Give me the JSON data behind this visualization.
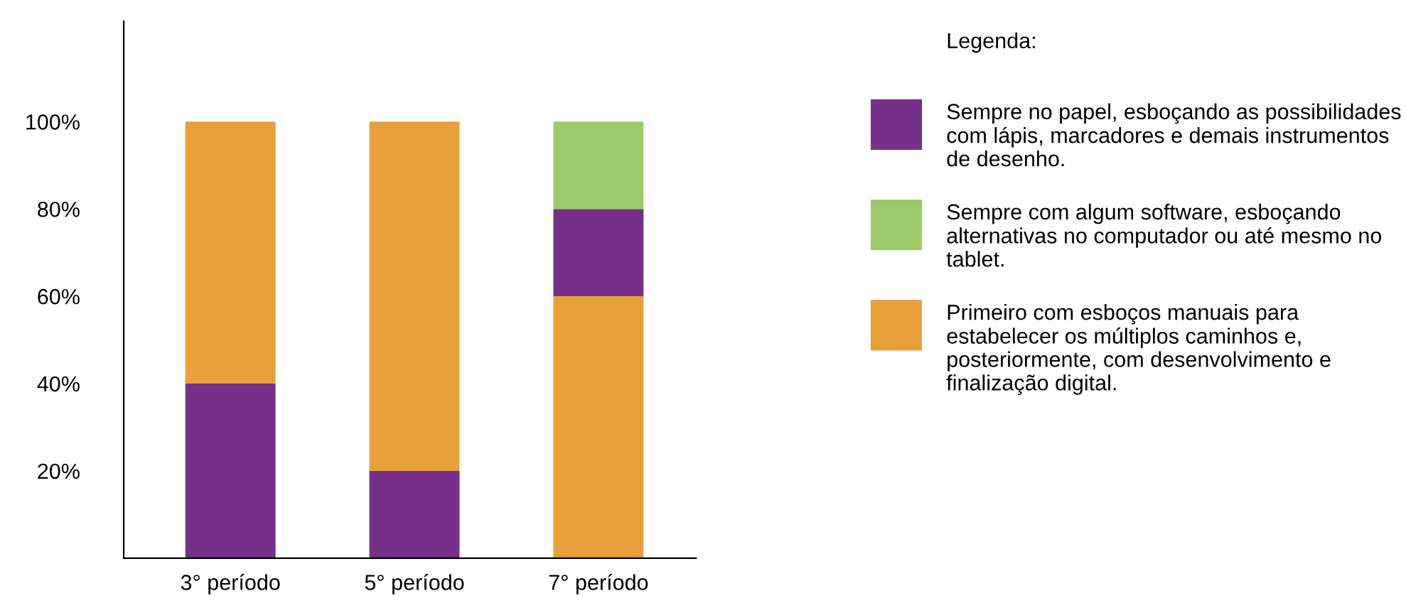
{
  "chart_data": {
    "type": "bar",
    "legend_title": "Legenda:",
    "legend": "right",
    "grid": false,
    "categories": [
      "3° período",
      "5° período",
      "7° período"
    ],
    "series": [
      {
        "name": "Sempre no papel, esboçando as possibilidades com lápis, marcadores e demais instrumentos de desenho.",
        "color": "#76308a",
        "values": [
          40,
          20,
          20
        ],
        "base": [
          0,
          0,
          60
        ]
      },
      {
        "name": "Sempre com algum software, esboçando alternativas no computador ou até mesmo no tablet.",
        "color": "#9ccc6a",
        "values": [
          null,
          null,
          20
        ],
        "base": [
          null,
          null,
          80
        ]
      },
      {
        "name": "Primeiro com esboços manuais para estabelecer os múltiplos caminhos e, posteriormente, com desenvolvimento e finalização digital.",
        "color": "#e8a03a",
        "values": [
          60,
          80,
          60
        ],
        "base": [
          40,
          20,
          0
        ]
      }
    ],
    "ylim": [
      0,
      123
    ],
    "yticks": [
      {
        "value": 20,
        "label": "20%"
      },
      {
        "value": 40,
        "label": "40%"
      },
      {
        "value": 60,
        "label": "60%"
      },
      {
        "value": 80,
        "label": "80%"
      },
      {
        "value": 100,
        "label": "100%"
      }
    ]
  }
}
